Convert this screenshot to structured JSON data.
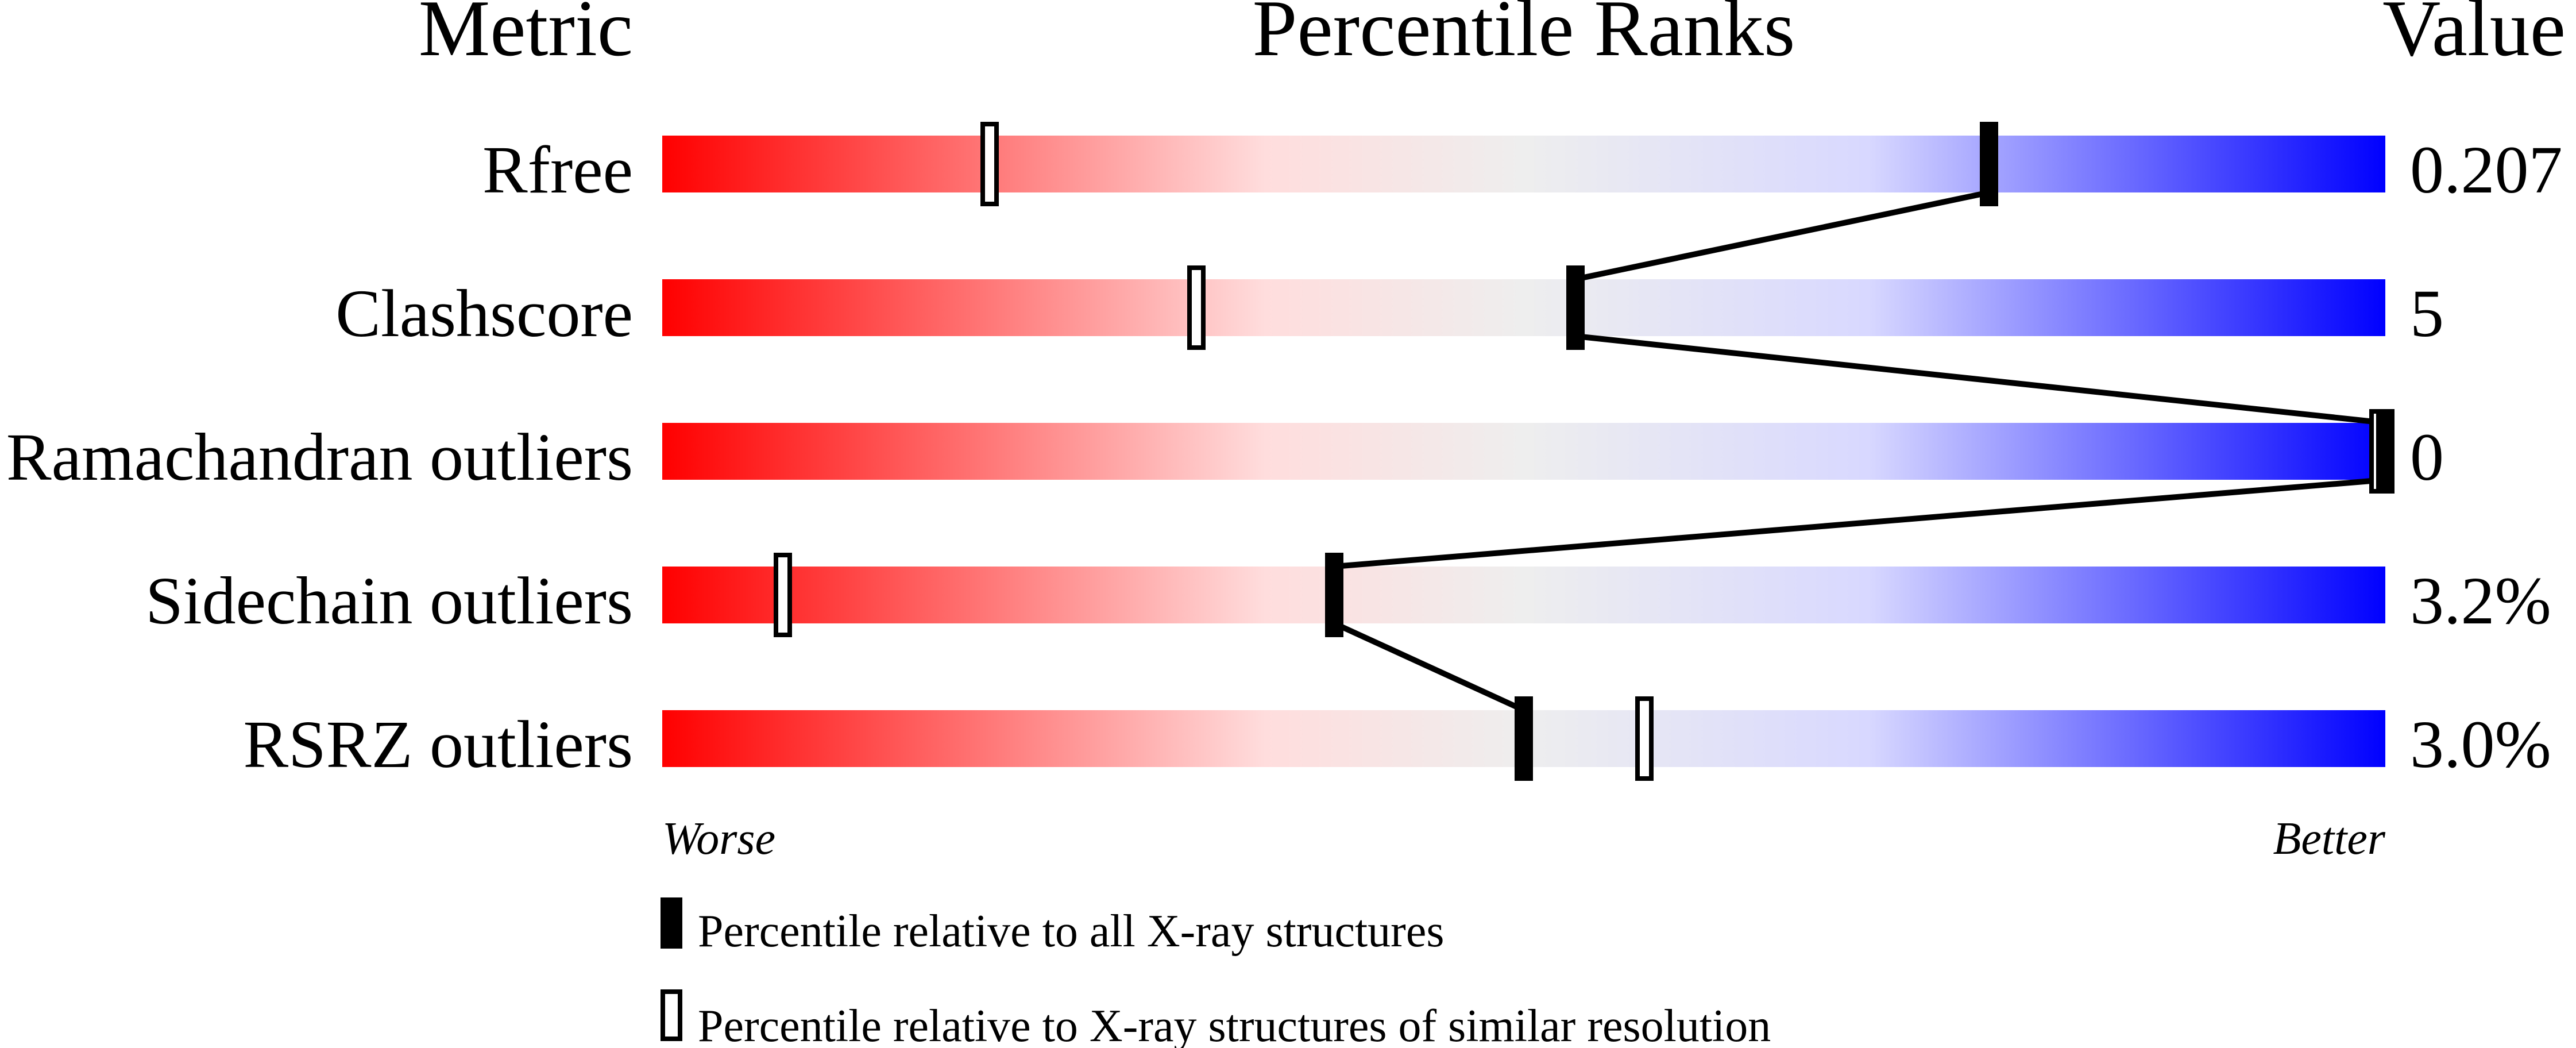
{
  "headers": {
    "metric": "Metric",
    "percentile": "Percentile Ranks",
    "value": "Value"
  },
  "axis": {
    "worse": "Worse",
    "better": "Better"
  },
  "legend": {
    "filled": "Percentile relative to all X-ray structures",
    "open": "Percentile relative to X-ray structures of similar resolution"
  },
  "colors": {
    "worse": "#ff0000",
    "middle": "#eeeeee",
    "better": "#0000ff",
    "marker": "#000000"
  },
  "chart_data": {
    "type": "percentile-slider",
    "xlim": [
      0,
      100
    ],
    "rows": [
      {
        "metric": "Rfree",
        "value": "0.207",
        "percentile_all": 77,
        "percentile_similar": 19
      },
      {
        "metric": "Clashscore",
        "value": "5",
        "percentile_all": 53,
        "percentile_similar": 31
      },
      {
        "metric": "Ramachandran outliers",
        "value": "0",
        "percentile_all": 100,
        "percentile_similar": 100
      },
      {
        "metric": "Sidechain outliers",
        "value": "3.2%",
        "percentile_all": 39,
        "percentile_similar": 7
      },
      {
        "metric": "RSRZ outliers",
        "value": "3.0%",
        "percentile_all": 50,
        "percentile_similar": 57
      }
    ]
  }
}
